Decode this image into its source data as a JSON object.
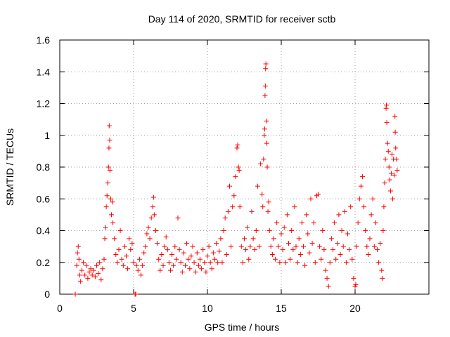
{
  "chart_data": {
    "type": "scatter",
    "title": "Day 114 of 2020, SRMTID for receiver sctb",
    "xlabel": "GPS time / hours",
    "ylabel": "SRMTID / TECUs",
    "xlim": [
      0,
      25
    ],
    "ylim": [
      0,
      1.6
    ],
    "xticks": [
      0,
      5,
      10,
      15,
      20
    ],
    "xtick_labels": [
      "0",
      "5",
      "10",
      "15",
      "20"
    ],
    "yticks": [
      0,
      0.2,
      0.4,
      0.6,
      0.8,
      1.0,
      1.2,
      1.4,
      1.6
    ],
    "ytick_labels": [
      "0",
      "0.2",
      "0.4",
      "0.6",
      "0.8",
      "1",
      "1.2",
      "1.4",
      "1.6"
    ],
    "grid": true,
    "marker": "+",
    "color": "#ff0000",
    "series": [
      {
        "name": "sctb",
        "points": [
          [
            1.05,
            0.0
          ],
          [
            5.1,
            0.0
          ],
          [
            5.15,
            0.0
          ],
          [
            1.15,
            0.18
          ],
          [
            1.2,
            0.26
          ],
          [
            1.25,
            0.3
          ],
          [
            1.3,
            0.22
          ],
          [
            1.35,
            0.12
          ],
          [
            1.4,
            0.08
          ],
          [
            1.5,
            0.15
          ],
          [
            1.6,
            0.2
          ],
          [
            1.7,
            0.12
          ],
          [
            1.8,
            0.18
          ],
          [
            1.9,
            0.1
          ],
          [
            2.0,
            0.14
          ],
          [
            2.1,
            0.16
          ],
          [
            2.2,
            0.12
          ],
          [
            2.3,
            0.15
          ],
          [
            2.4,
            0.11
          ],
          [
            2.5,
            0.18
          ],
          [
            2.6,
            0.13
          ],
          [
            2.7,
            0.2
          ],
          [
            2.8,
            0.09
          ],
          [
            2.9,
            0.16
          ],
          [
            3.0,
            0.22
          ],
          [
            3.05,
            0.35
          ],
          [
            3.1,
            0.42
          ],
          [
            3.15,
            0.55
          ],
          [
            3.2,
            0.62
          ],
          [
            3.25,
            0.7
          ],
          [
            3.3,
            0.8
          ],
          [
            3.33,
            0.92
          ],
          [
            3.35,
            1.06
          ],
          [
            3.38,
            0.97
          ],
          [
            3.4,
            0.78
          ],
          [
            3.45,
            0.6
          ],
          [
            3.5,
            0.5
          ],
          [
            3.55,
            0.58
          ],
          [
            3.6,
            0.45
          ],
          [
            3.7,
            0.35
          ],
          [
            3.8,
            0.25
          ],
          [
            3.9,
            0.2
          ],
          [
            4.0,
            0.28
          ],
          [
            4.1,
            0.4
          ],
          [
            4.2,
            0.22
          ],
          [
            4.3,
            0.18
          ],
          [
            4.4,
            0.3
          ],
          [
            4.5,
            0.24
          ],
          [
            4.6,
            0.16
          ],
          [
            4.7,
            0.35
          ],
          [
            4.8,
            0.28
          ],
          [
            4.9,
            0.32
          ],
          [
            5.0,
            0.2
          ],
          [
            5.2,
            0.18
          ],
          [
            5.3,
            0.15
          ],
          [
            5.4,
            0.22
          ],
          [
            5.5,
            0.12
          ],
          [
            5.6,
            0.18
          ],
          [
            5.7,
            0.26
          ],
          [
            5.8,
            0.3
          ],
          [
            5.9,
            0.38
          ],
          [
            6.0,
            0.42
          ],
          [
            6.1,
            0.35
          ],
          [
            6.2,
            0.48
          ],
          [
            6.3,
            0.55
          ],
          [
            6.35,
            0.61
          ],
          [
            6.4,
            0.5
          ],
          [
            6.5,
            0.4
          ],
          [
            6.6,
            0.32
          ],
          [
            6.7,
            0.22
          ],
          [
            6.8,
            0.15
          ],
          [
            6.9,
            0.25
          ],
          [
            7.0,
            0.18
          ],
          [
            7.1,
            0.3
          ],
          [
            7.2,
            0.36
          ],
          [
            7.3,
            0.28
          ],
          [
            7.4,
            0.2
          ],
          [
            7.5,
            0.15
          ],
          [
            7.6,
            0.25
          ],
          [
            7.7,
            0.18
          ],
          [
            7.8,
            0.3
          ],
          [
            7.9,
            0.22
          ],
          [
            8.0,
            0.48
          ],
          [
            8.1,
            0.28
          ],
          [
            8.2,
            0.2
          ],
          [
            8.3,
            0.14
          ],
          [
            8.4,
            0.26
          ],
          [
            8.5,
            0.18
          ],
          [
            8.6,
            0.32
          ],
          [
            8.7,
            0.22
          ],
          [
            8.8,
            0.16
          ],
          [
            8.9,
            0.24
          ],
          [
            9.0,
            0.3
          ],
          [
            9.1,
            0.2
          ],
          [
            9.2,
            0.14
          ],
          [
            9.3,
            0.26
          ],
          [
            9.4,
            0.18
          ],
          [
            9.5,
            0.22
          ],
          [
            9.6,
            0.16
          ],
          [
            9.7,
            0.28
          ],
          [
            9.8,
            0.2
          ],
          [
            9.9,
            0.14
          ],
          [
            10.0,
            0.24
          ],
          [
            10.1,
            0.3
          ],
          [
            10.2,
            0.2
          ],
          [
            10.3,
            0.16
          ],
          [
            10.4,
            0.26
          ],
          [
            10.5,
            0.22
          ],
          [
            10.6,
            0.32
          ],
          [
            10.7,
            0.2
          ],
          [
            10.8,
            0.27
          ],
          [
            10.9,
            0.35
          ],
          [
            11.0,
            0.2
          ],
          [
            11.1,
            0.4
          ],
          [
            11.2,
            0.48
          ],
          [
            11.3,
            0.25
          ],
          [
            11.4,
            0.52
          ],
          [
            11.5,
            0.68
          ],
          [
            11.6,
            0.3
          ],
          [
            11.7,
            0.55
          ],
          [
            11.8,
            0.62
          ],
          [
            11.9,
            0.74
          ],
          [
            12.0,
            0.92
          ],
          [
            12.05,
            0.94
          ],
          [
            12.1,
            0.8
          ],
          [
            12.15,
            0.78
          ],
          [
            12.2,
            0.55
          ],
          [
            12.3,
            0.3
          ],
          [
            12.4,
            0.2
          ],
          [
            12.5,
            0.35
          ],
          [
            12.6,
            0.28
          ],
          [
            12.7,
            0.42
          ],
          [
            12.8,
            0.22
          ],
          [
            12.9,
            0.3
          ],
          [
            13.0,
            0.52
          ],
          [
            13.1,
            0.35
          ],
          [
            13.2,
            0.28
          ],
          [
            13.3,
            0.4
          ],
          [
            13.4,
            0.68
          ],
          [
            13.5,
            0.3
          ],
          [
            13.6,
            0.82
          ],
          [
            13.7,
            0.63
          ],
          [
            13.75,
            0.55
          ],
          [
            13.8,
            0.85
          ],
          [
            13.85,
            1.0
          ],
          [
            13.88,
            1.04
          ],
          [
            13.9,
            1.25
          ],
          [
            13.92,
            1.31
          ],
          [
            13.94,
            1.42
          ],
          [
            13.96,
            1.45
          ],
          [
            14.0,
            1.09
          ],
          [
            14.02,
            0.95
          ],
          [
            14.05,
            0.8
          ],
          [
            14.1,
            0.52
          ],
          [
            14.15,
            0.58
          ],
          [
            14.2,
            0.4
          ],
          [
            14.3,
            0.3
          ],
          [
            14.4,
            0.25
          ],
          [
            14.5,
            0.35
          ],
          [
            14.6,
            0.22
          ],
          [
            14.7,
            0.45
          ],
          [
            14.8,
            0.3
          ],
          [
            14.9,
            0.2
          ],
          [
            15.0,
            0.38
          ],
          [
            15.1,
            0.28
          ],
          [
            15.2,
            0.42
          ],
          [
            15.3,
            0.2
          ],
          [
            15.4,
            0.5
          ],
          [
            15.5,
            0.32
          ],
          [
            15.6,
            0.22
          ],
          [
            15.7,
            0.4
          ],
          [
            15.8,
            0.28
          ],
          [
            15.9,
            0.55
          ],
          [
            16.0,
            0.3
          ],
          [
            16.1,
            0.2
          ],
          [
            16.2,
            0.35
          ],
          [
            16.3,
            0.25
          ],
          [
            16.4,
            0.45
          ],
          [
            16.5,
            0.3
          ],
          [
            16.6,
            0.18
          ],
          [
            16.7,
            0.5
          ],
          [
            16.8,
            0.38
          ],
          [
            16.9,
            0.26
          ],
          [
            17.0,
            0.6
          ],
          [
            17.1,
            0.32
          ],
          [
            17.2,
            0.45
          ],
          [
            17.3,
            0.2
          ],
          [
            17.4,
            0.62
          ],
          [
            17.5,
            0.63
          ],
          [
            17.6,
            0.3
          ],
          [
            17.7,
            0.22
          ],
          [
            17.8,
            0.4
          ],
          [
            17.9,
            0.28
          ],
          [
            18.0,
            0.15
          ],
          [
            18.1,
            0.1
          ],
          [
            18.2,
            0.05
          ],
          [
            18.3,
            0.2
          ],
          [
            18.4,
            0.35
          ],
          [
            18.5,
            0.28
          ],
          [
            18.6,
            0.45
          ],
          [
            18.7,
            0.22
          ],
          [
            18.8,
            0.32
          ],
          [
            18.9,
            0.5
          ],
          [
            19.0,
            0.25
          ],
          [
            19.1,
            0.4
          ],
          [
            19.2,
            0.3
          ],
          [
            19.3,
            0.52
          ],
          [
            19.4,
            0.2
          ],
          [
            19.5,
            0.38
          ],
          [
            19.6,
            0.28
          ],
          [
            19.7,
            0.55
          ],
          [
            19.8,
            0.22
          ],
          [
            19.9,
            0.1
          ],
          [
            20.0,
            0.05
          ],
          [
            20.05,
            0.06
          ],
          [
            20.1,
            0.3
          ],
          [
            20.2,
            0.45
          ],
          [
            20.3,
            0.6
          ],
          [
            20.4,
            0.68
          ],
          [
            20.5,
            0.74
          ],
          [
            20.6,
            0.55
          ],
          [
            20.7,
            0.4
          ],
          [
            20.8,
            0.3
          ],
          [
            20.9,
            0.25
          ],
          [
            21.0,
            0.35
          ],
          [
            21.1,
            0.5
          ],
          [
            21.2,
            0.6
          ],
          [
            21.3,
            0.3
          ],
          [
            21.4,
            0.45
          ],
          [
            21.5,
            0.28
          ],
          [
            21.6,
            0.2
          ],
          [
            21.7,
            0.32
          ],
          [
            21.8,
            0.15
          ],
          [
            21.85,
            0.1
          ],
          [
            21.9,
            0.4
          ],
          [
            21.95,
            0.55
          ],
          [
            22.0,
            0.7
          ],
          [
            22.05,
            0.85
          ],
          [
            22.1,
            1.17
          ],
          [
            22.12,
            1.19
          ],
          [
            22.15,
            1.08
          ],
          [
            22.2,
            0.95
          ],
          [
            22.25,
            0.9
          ],
          [
            22.3,
            0.8
          ],
          [
            22.35,
            0.72
          ],
          [
            22.4,
            0.65
          ],
          [
            22.45,
            0.76
          ],
          [
            22.5,
            0.88
          ],
          [
            22.55,
            0.6
          ],
          [
            22.6,
            0.85
          ],
          [
            22.65,
            0.75
          ],
          [
            22.7,
            1.12
          ],
          [
            22.72,
            1.02
          ],
          [
            22.75,
            0.92
          ],
          [
            22.8,
            0.85
          ],
          [
            22.85,
            0.78
          ]
        ]
      }
    ]
  }
}
